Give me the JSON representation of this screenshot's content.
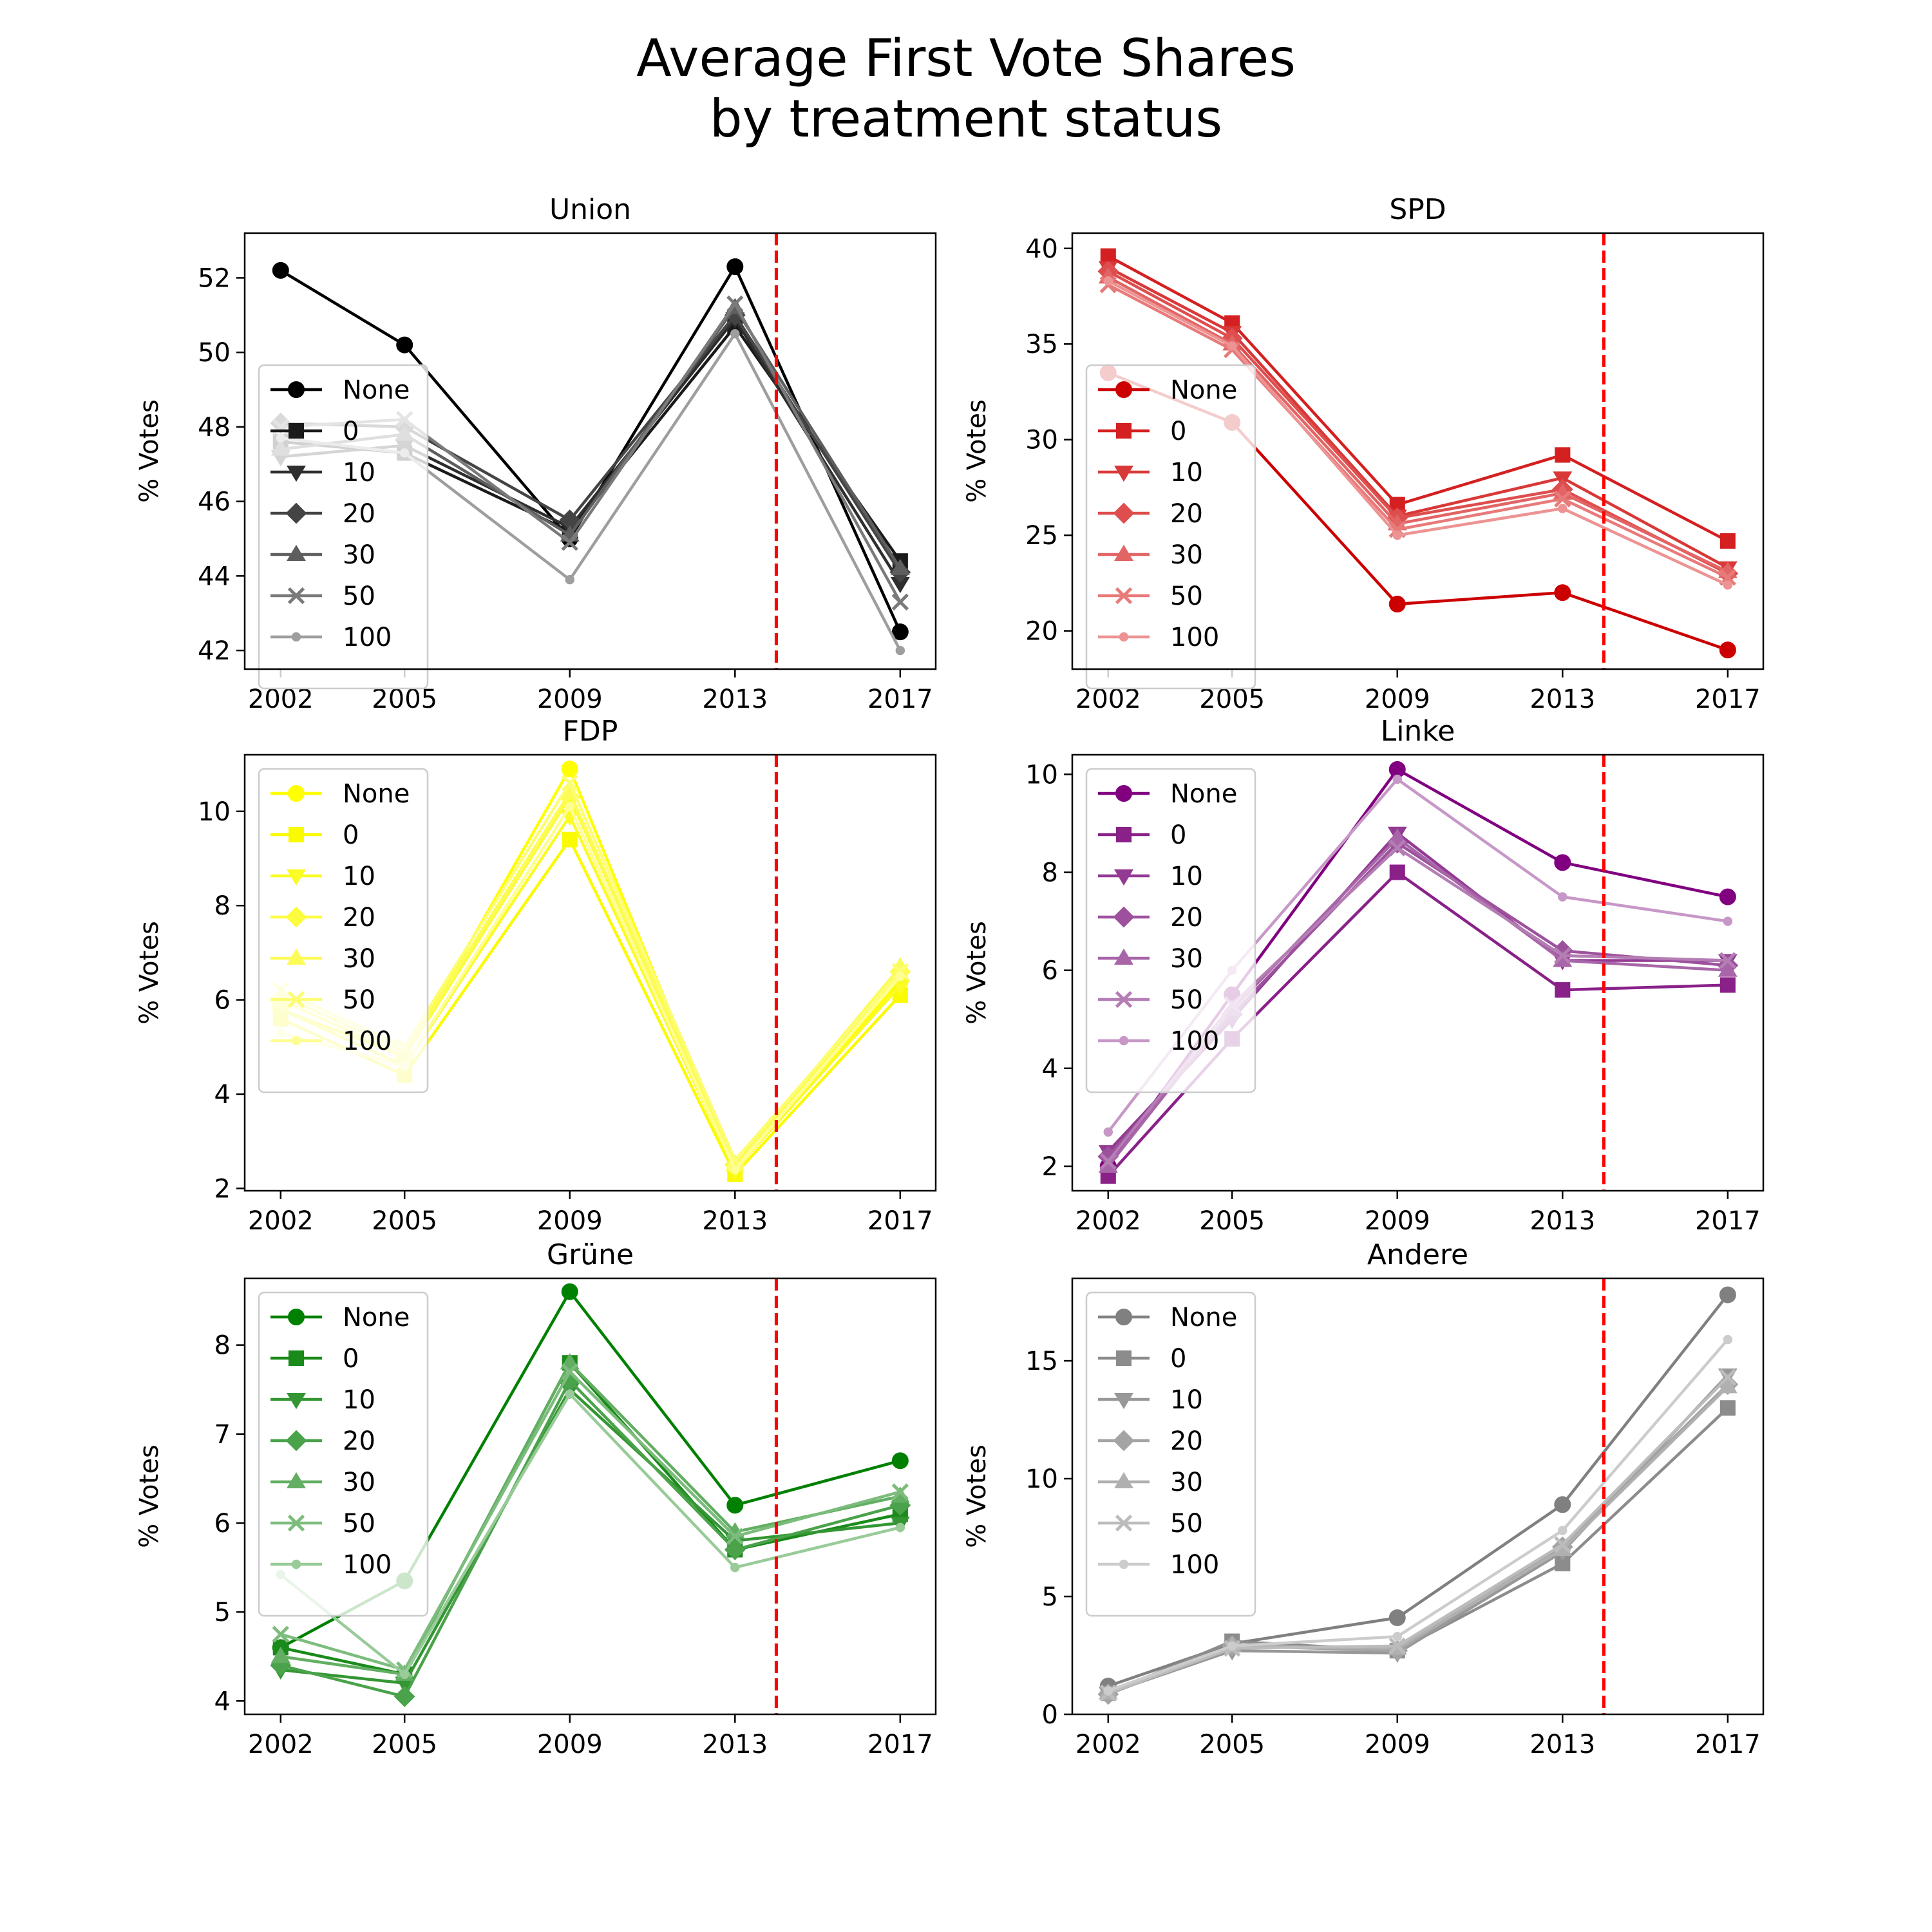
{
  "figure": {
    "title_line1": "Average First Vote Shares",
    "title_line2": "by treatment status"
  },
  "chart_data": [
    {
      "type": "line",
      "title": "Union",
      "ylabel": "% Votes",
      "x": [
        2002,
        2005,
        2009,
        2013,
        2017
      ],
      "ylim": [
        41.5,
        53.2
      ],
      "yticks": [
        42,
        44,
        46,
        48,
        50,
        52
      ],
      "treatment_line_x": 2014.0,
      "legend_position": "center-left",
      "series": [
        {
          "name": "None",
          "marker": "circle",
          "color": "#000000",
          "values": [
            52.2,
            50.2,
            45.0,
            52.3,
            42.5
          ]
        },
        {
          "name": "0",
          "marker": "square",
          "color": "#1a1a1a",
          "values": [
            47.6,
            47.3,
            45.2,
            50.7,
            44.4
          ]
        },
        {
          "name": "10",
          "marker": "triangle-down",
          "color": "#2e2e2e",
          "values": [
            47.2,
            47.5,
            45.3,
            50.9,
            43.8
          ]
        },
        {
          "name": "20",
          "marker": "diamond",
          "color": "#444444",
          "values": [
            48.1,
            48.0,
            45.5,
            51.0,
            44.1
          ]
        },
        {
          "name": "30",
          "marker": "triangle-up",
          "color": "#5e5e5e",
          "values": [
            47.4,
            47.8,
            45.1,
            51.2,
            44.2
          ]
        },
        {
          "name": "50",
          "marker": "x",
          "color": "#7a7a7a",
          "values": [
            48.0,
            48.2,
            44.9,
            51.3,
            43.3
          ]
        },
        {
          "name": "100",
          "marker": "point",
          "color": "#9e9e9e",
          "values": [
            47.7,
            47.3,
            43.9,
            50.5,
            42.0
          ]
        }
      ]
    },
    {
      "type": "line",
      "title": "SPD",
      "ylabel": "% Votes",
      "x": [
        2002,
        2005,
        2009,
        2013,
        2017
      ],
      "ylim": [
        18.0,
        40.8
      ],
      "yticks": [
        20,
        25,
        30,
        35,
        40
      ],
      "treatment_line_x": 2014.0,
      "legend_position": "center-left",
      "series": [
        {
          "name": "None",
          "marker": "circle",
          "color": "#cc0000",
          "values": [
            33.5,
            30.9,
            21.4,
            22.0,
            19.0
          ]
        },
        {
          "name": "0",
          "marker": "square",
          "color": "#d42020",
          "values": [
            39.6,
            36.1,
            26.6,
            29.2,
            24.7
          ]
        },
        {
          "name": "10",
          "marker": "triangle-down",
          "color": "#d93838",
          "values": [
            39.0,
            35.6,
            26.0,
            28.0,
            23.3
          ]
        },
        {
          "name": "20",
          "marker": "diamond",
          "color": "#de4e4e",
          "values": [
            38.8,
            35.3,
            25.9,
            27.4,
            23.0
          ]
        },
        {
          "name": "30",
          "marker": "triangle-up",
          "color": "#e36464",
          "values": [
            38.5,
            35.0,
            25.6,
            27.2,
            23.1
          ]
        },
        {
          "name": "50",
          "marker": "x",
          "color": "#e87a7a",
          "values": [
            38.1,
            34.7,
            25.3,
            26.9,
            22.8
          ]
        },
        {
          "name": "100",
          "marker": "point",
          "color": "#ed9393",
          "values": [
            38.3,
            34.9,
            25.0,
            26.4,
            22.4
          ]
        }
      ]
    },
    {
      "type": "line",
      "title": "FDP",
      "ylabel": "% Votes",
      "x": [
        2002,
        2005,
        2009,
        2013,
        2017
      ],
      "ylim": [
        1.95,
        11.2
      ],
      "yticks": [
        2,
        4,
        6,
        8,
        10
      ],
      "treatment_line_x": 2014.0,
      "legend_position": "top-left",
      "series": [
        {
          "name": "None",
          "marker": "circle",
          "color": "#ffff00",
          "values": [
            5.8,
            4.8,
            10.9,
            2.4,
            6.4
          ]
        },
        {
          "name": "0",
          "marker": "square",
          "color": "#fafa00",
          "values": [
            5.6,
            4.4,
            9.4,
            2.3,
            6.1
          ]
        },
        {
          "name": "10",
          "marker": "triangle-down",
          "color": "#fbfb26",
          "values": [
            5.8,
            4.6,
            9.9,
            2.4,
            6.3
          ]
        },
        {
          "name": "20",
          "marker": "diamond",
          "color": "#fcfc3e",
          "values": [
            6.0,
            4.8,
            10.3,
            2.5,
            6.6
          ]
        },
        {
          "name": "30",
          "marker": "triangle-up",
          "color": "#fcfc58",
          "values": [
            6.1,
            4.9,
            10.4,
            2.5,
            6.7
          ]
        },
        {
          "name": "50",
          "marker": "x",
          "color": "#fdfd74",
          "values": [
            6.2,
            5.0,
            10.6,
            2.6,
            6.6
          ]
        },
        {
          "name": "100",
          "marker": "point",
          "color": "#fefe92",
          "values": [
            5.3,
            4.6,
            10.1,
            2.4,
            6.5
          ]
        }
      ]
    },
    {
      "type": "line",
      "title": "Linke",
      "ylabel": "% Votes",
      "x": [
        2002,
        2005,
        2009,
        2013,
        2017
      ],
      "ylim": [
        1.5,
        10.4
      ],
      "yticks": [
        2,
        4,
        6,
        8,
        10
      ],
      "treatment_line_x": 2014.0,
      "legend_position": "top-left",
      "series": [
        {
          "name": "None",
          "marker": "circle",
          "color": "#800080",
          "values": [
            2.0,
            5.5,
            10.1,
            8.2,
            7.5
          ]
        },
        {
          "name": "0",
          "marker": "square",
          "color": "#892189",
          "values": [
            1.8,
            4.6,
            8.0,
            5.6,
            5.7
          ]
        },
        {
          "name": "10",
          "marker": "triangle-down",
          "color": "#933a93",
          "values": [
            2.3,
            5.0,
            8.8,
            6.2,
            6.2
          ]
        },
        {
          "name": "20",
          "marker": "diamond",
          "color": "#9d519d",
          "values": [
            2.2,
            5.1,
            8.6,
            6.4,
            6.1
          ]
        },
        {
          "name": "30",
          "marker": "triangle-up",
          "color": "#a866a8",
          "values": [
            2.0,
            5.2,
            8.7,
            6.2,
            6.0
          ]
        },
        {
          "name": "50",
          "marker": "x",
          "color": "#b47db4",
          "values": [
            2.1,
            5.3,
            8.5,
            6.3,
            6.2
          ]
        },
        {
          "name": "100",
          "marker": "point",
          "color": "#c798c7",
          "values": [
            2.7,
            6.0,
            9.9,
            7.5,
            7.0
          ]
        }
      ]
    },
    {
      "type": "line",
      "title": "Grüne",
      "ylabel": "% Votes",
      "x": [
        2002,
        2005,
        2009,
        2013,
        2017
      ],
      "ylim": [
        3.85,
        8.75
      ],
      "yticks": [
        4,
        5,
        6,
        7,
        8
      ],
      "treatment_line_x": 2014.0,
      "legend_position": "top-left",
      "series": [
        {
          "name": "None",
          "marker": "circle",
          "color": "#008000",
          "values": [
            4.6,
            5.35,
            8.6,
            6.2,
            6.7
          ]
        },
        {
          "name": "0",
          "marker": "square",
          "color": "#1a8a1a",
          "values": [
            4.6,
            4.3,
            7.8,
            5.7,
            6.1
          ]
        },
        {
          "name": "10",
          "marker": "triangle-down",
          "color": "#339633",
          "values": [
            4.35,
            4.2,
            7.5,
            5.8,
            6.0
          ]
        },
        {
          "name": "20",
          "marker": "diamond",
          "color": "#4aa24a",
          "values": [
            4.4,
            4.05,
            7.6,
            5.7,
            6.2
          ]
        },
        {
          "name": "30",
          "marker": "triangle-up",
          "color": "#62ae62",
          "values": [
            4.5,
            4.3,
            7.8,
            5.9,
            6.3
          ]
        },
        {
          "name": "50",
          "marker": "x",
          "color": "#7cbc7c",
          "values": [
            4.75,
            4.35,
            7.7,
            5.85,
            6.35
          ]
        },
        {
          "name": "100",
          "marker": "point",
          "color": "#98cb98",
          "values": [
            5.42,
            4.3,
            7.45,
            5.5,
            5.95
          ]
        }
      ]
    },
    {
      "type": "line",
      "title": "Andere",
      "ylabel": "% Votes",
      "x": [
        2002,
        2005,
        2009,
        2013,
        2017
      ],
      "ylim": [
        0.0,
        18.5
      ],
      "yticks": [
        0,
        5,
        10,
        15
      ],
      "treatment_line_x": 2014.0,
      "legend_position": "top-left",
      "series": [
        {
          "name": "None",
          "marker": "circle",
          "color": "#808080",
          "values": [
            1.2,
            3.0,
            4.1,
            8.9,
            17.8
          ]
        },
        {
          "name": "0",
          "marker": "square",
          "color": "#8c8c8c",
          "values": [
            0.9,
            3.1,
            2.7,
            6.4,
            13.0
          ]
        },
        {
          "name": "10",
          "marker": "triangle-down",
          "color": "#989898",
          "values": [
            0.9,
            2.7,
            2.6,
            6.9,
            14.4
          ]
        },
        {
          "name": "20",
          "marker": "diamond",
          "color": "#a4a4a4",
          "values": [
            0.85,
            2.9,
            2.7,
            7.1,
            14.0
          ]
        },
        {
          "name": "30",
          "marker": "triangle-up",
          "color": "#b0b0b0",
          "values": [
            0.9,
            2.9,
            2.8,
            7.0,
            13.9
          ]
        },
        {
          "name": "50",
          "marker": "x",
          "color": "#bcbcbc",
          "values": [
            0.9,
            2.8,
            2.9,
            7.2,
            14.3
          ]
        },
        {
          "name": "100",
          "marker": "point",
          "color": "#cccccc",
          "values": [
            1.0,
            2.9,
            3.3,
            7.8,
            15.9
          ]
        }
      ]
    }
  ]
}
